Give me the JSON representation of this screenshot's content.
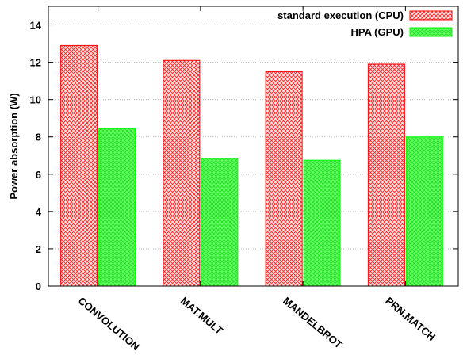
{
  "chart_data": {
    "type": "bar",
    "categories": [
      "CONVOLUTION",
      "MAT.MULT",
      "MANDELBROT",
      "PRN.MATCH"
    ],
    "series": [
      {
        "name": "standard execution (CPU)",
        "values": [
          12.9,
          12.1,
          11.5,
          11.9
        ],
        "color": "#ff0000",
        "fill": "hatched-red"
      },
      {
        "name": "HPA (GPU)",
        "values": [
          8.45,
          6.85,
          6.75,
          8.0
        ],
        "color": "#00ff00",
        "fill": "hatched-green"
      }
    ],
    "ylabel": "Power absorption (W)",
    "xlabel": "",
    "ylim": [
      0,
      15
    ],
    "yticks": [
      0,
      2,
      4,
      6,
      8,
      10,
      12,
      14
    ],
    "grid": true,
    "legend_position": "top-right"
  }
}
